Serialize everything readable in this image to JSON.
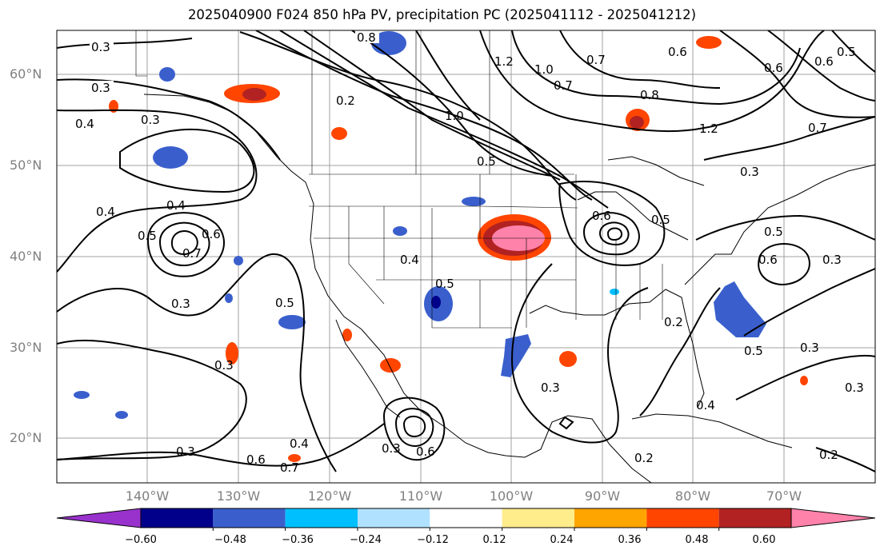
{
  "title": "2025040900 F024 850 hPa PV, precipitation PC (2025041112 - 2025041212)",
  "lat_labels": [
    "60°N",
    "50°N",
    "40°N",
    "30°N",
    "20°N"
  ],
  "lon_labels": [
    "140°W",
    "130°W",
    "120°W",
    "110°W",
    "100°W",
    "90°W",
    "80°W",
    "70°W"
  ],
  "colorbar": {
    "ticks": [
      "−0.60",
      "−0.48",
      "−0.36",
      "−0.24",
      "−0.12",
      "0.12",
      "0.24",
      "0.36",
      "0.48",
      "0.60"
    ],
    "colors": [
      "#9932cc",
      "#00008b",
      "#3a5fcd",
      "#00bfff",
      "#b0e2ff",
      "#ffffff",
      "#ffec8b",
      "#ffa500",
      "#ff4500",
      "#b22222",
      "#ff82ab"
    ]
  },
  "contour_labels": [
    "0.3",
    "0.8",
    "1.2",
    "1.0",
    "0.7",
    "0.5",
    "0.6",
    "0.3",
    "0.4",
    "0.3",
    "0.4",
    "0.5",
    "0.4",
    "0.7",
    "0.6",
    "0.2",
    "1.0",
    "0.7",
    "0.8",
    "0.5",
    "0.6",
    "1.2",
    "0.3",
    "0.6",
    "0.7",
    "0.4",
    "0.6",
    "0.5",
    "0.5",
    "0.3",
    "0.3",
    "0.5",
    "0.3",
    "0.5",
    "0.4",
    "0.3",
    "0.4",
    "0.2",
    "0.6",
    "0.7",
    "0.3",
    "0.5",
    "0.6",
    "0.3",
    "0.2",
    "0.6",
    "0.3",
    "0.2",
    "0.3"
  ]
}
